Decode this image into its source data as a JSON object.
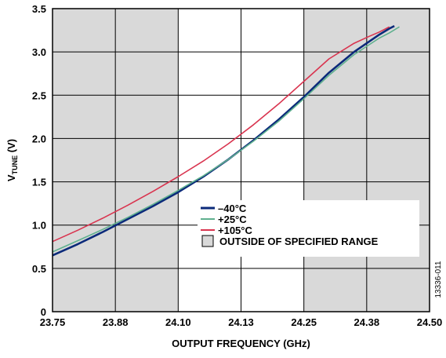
{
  "chart_data": {
    "type": "line",
    "xlabel": "OUTPUT FREQUENCY (GHz)",
    "ylabel_main": "V",
    "ylabel_sub": "TUNE",
    "ylabel_suffix": " (V)",
    "x_tick_labels": [
      "23.75",
      "23.88",
      "24.10",
      "24.13",
      "24.25",
      "24.38",
      "24.50"
    ],
    "y_ticks": [
      0,
      0.5,
      1.0,
      1.5,
      2.0,
      2.5,
      3.0,
      3.5
    ],
    "y_tick_labels": [
      "0",
      "0.5",
      "1.0",
      "1.5",
      "2.0",
      "2.5",
      "3.0",
      "3.5"
    ],
    "ylim": [
      0,
      3.5
    ],
    "xlim": [
      23.75,
      24.5
    ],
    "grid": true,
    "shaded_regions": [
      [
        23.75,
        24.0
      ],
      [
        24.25,
        24.5
      ]
    ],
    "shaded_label": "OUTSIDE OF SPECIFIED RANGE",
    "legend_position": "center",
    "figure_id": "13336-011",
    "series": [
      {
        "name": "–40°C",
        "color": "#0b2a7a",
        "x": [
          23.75,
          23.8,
          23.85,
          23.9,
          23.95,
          24.0,
          24.05,
          24.1,
          24.15,
          24.2,
          24.25,
          24.3,
          24.35,
          24.4,
          24.42,
          24.43
        ],
        "y": [
          0.65,
          0.78,
          0.92,
          1.07,
          1.22,
          1.38,
          1.56,
          1.76,
          1.98,
          2.22,
          2.48,
          2.76,
          3.0,
          3.2,
          3.27,
          3.3
        ]
      },
      {
        "name": "+25°C",
        "color": "#5fb08f",
        "x": [
          23.75,
          23.8,
          23.85,
          23.9,
          23.95,
          24.0,
          24.05,
          24.1,
          24.15,
          24.2,
          24.25,
          24.3,
          24.35,
          24.4,
          24.42,
          24.44
        ],
        "y": [
          0.69,
          0.82,
          0.95,
          1.09,
          1.24,
          1.4,
          1.57,
          1.76,
          1.97,
          2.2,
          2.46,
          2.73,
          2.97,
          3.16,
          3.22,
          3.29
        ]
      },
      {
        "name": "+105°C",
        "color": "#d9344f",
        "x": [
          23.75,
          23.8,
          23.85,
          23.9,
          23.95,
          24.0,
          24.05,
          24.1,
          24.15,
          24.2,
          24.25,
          24.3,
          24.35,
          24.38,
          24.4,
          24.42
        ],
        "y": [
          0.81,
          0.94,
          1.08,
          1.23,
          1.39,
          1.56,
          1.74,
          1.94,
          2.16,
          2.4,
          2.66,
          2.92,
          3.1,
          3.18,
          3.23,
          3.29
        ]
      }
    ]
  }
}
